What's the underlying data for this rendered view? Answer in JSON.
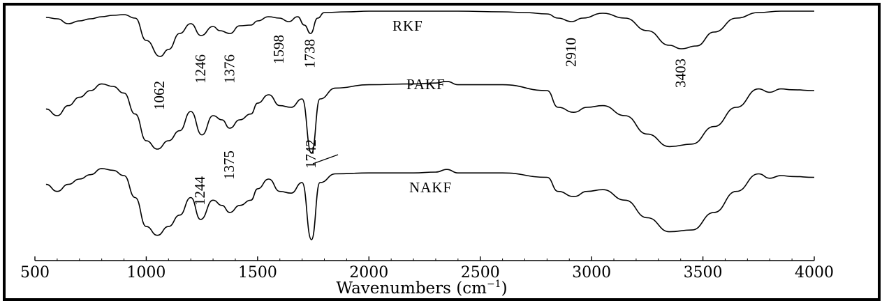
{
  "chart_data": {
    "type": "line",
    "xlabel": "Wavenumbers (cm",
    "xlabel_sup": "−1",
    "xlabel_close": ")",
    "xlim": [
      500,
      4000
    ],
    "xticks": [
      500,
      1000,
      1500,
      2000,
      2500,
      3000,
      3500,
      4000
    ],
    "grid": false,
    "series": [
      {
        "name": "RKF",
        "x": [
          550,
          600,
          650,
          700,
          750,
          800,
          850,
          900,
          950,
          1000,
          1062,
          1100,
          1150,
          1200,
          1246,
          1300,
          1330,
          1376,
          1420,
          1470,
          1500,
          1550,
          1598,
          1640,
          1680,
          1710,
          1738,
          1770,
          1800,
          1900,
          2000,
          2200,
          2400,
          2600,
          2700,
          2800,
          2850,
          2910,
          2960,
          3050,
          3150,
          3250,
          3350,
          3403,
          3470,
          3550,
          3650,
          3750,
          3850,
          4000
        ],
        "y": [
          0.91,
          0.89,
          0.82,
          0.86,
          0.89,
          0.92,
          0.94,
          0.95,
          0.9,
          0.58,
          0.35,
          0.45,
          0.68,
          0.82,
          0.65,
          0.78,
          0.72,
          0.68,
          0.79,
          0.8,
          0.86,
          0.92,
          0.9,
          0.85,
          0.92,
          0.8,
          0.68,
          0.9,
          0.98,
          0.99,
          1.0,
          1.0,
          1.0,
          0.99,
          0.98,
          0.96,
          0.9,
          0.85,
          0.9,
          0.97,
          0.9,
          0.72,
          0.51,
          0.46,
          0.5,
          0.7,
          0.9,
          0.98,
          1.0,
          1.0
        ]
      },
      {
        "name": "PAKF",
        "x": [
          550,
          600,
          650,
          700,
          750,
          800,
          850,
          900,
          950,
          1000,
          1050,
          1100,
          1150,
          1200,
          1250,
          1300,
          1340,
          1375,
          1420,
          1470,
          1500,
          1550,
          1600,
          1650,
          1700,
          1742,
          1780,
          1850,
          2000,
          2200,
          2300,
          2350,
          2400,
          2600,
          2800,
          2850,
          2920,
          2980,
          3050,
          3150,
          3250,
          3350,
          3450,
          3550,
          3650,
          3750,
          3800,
          3850,
          3900,
          4000
        ],
        "y": [
          0.68,
          0.6,
          0.72,
          0.82,
          0.9,
          0.98,
          0.95,
          0.87,
          0.62,
          0.3,
          0.2,
          0.3,
          0.42,
          0.65,
          0.37,
          0.6,
          0.55,
          0.45,
          0.55,
          0.62,
          0.75,
          0.85,
          0.72,
          0.7,
          0.8,
          0.15,
          0.8,
          0.93,
          0.97,
          0.98,
          0.99,
          1.01,
          0.97,
          0.97,
          0.9,
          0.7,
          0.64,
          0.7,
          0.72,
          0.6,
          0.38,
          0.23,
          0.26,
          0.47,
          0.7,
          0.92,
          0.88,
          0.92,
          0.91,
          0.9
        ]
      },
      {
        "name": "NAKF",
        "x": [
          550,
          600,
          650,
          700,
          750,
          800,
          850,
          900,
          950,
          1000,
          1050,
          1100,
          1150,
          1200,
          1244,
          1300,
          1340,
          1375,
          1420,
          1470,
          1500,
          1550,
          1600,
          1650,
          1700,
          1742,
          1780,
          1850,
          2000,
          2200,
          2300,
          2350,
          2400,
          2600,
          2800,
          2850,
          2920,
          2980,
          3050,
          3150,
          3250,
          3350,
          3450,
          3550,
          3650,
          3750,
          3800,
          3850,
          3900,
          4000
        ],
        "y": [
          0.9,
          0.82,
          0.9,
          0.96,
          1.01,
          1.08,
          1.06,
          1.0,
          0.75,
          0.42,
          0.32,
          0.42,
          0.55,
          0.75,
          0.5,
          0.72,
          0.66,
          0.58,
          0.66,
          0.72,
          0.85,
          0.96,
          0.82,
          0.8,
          0.92,
          0.27,
          0.92,
          1.02,
          1.03,
          1.03,
          1.04,
          1.07,
          1.03,
          1.03,
          0.98,
          0.82,
          0.76,
          0.82,
          0.84,
          0.72,
          0.52,
          0.36,
          0.38,
          0.58,
          0.82,
          1.02,
          0.97,
          1.0,
          0.99,
          0.98
        ]
      }
    ],
    "annotations": [
      "1062",
      "1246",
      "1376",
      "1598",
      "1738",
      "2910",
      "3403",
      "1742",
      "1244",
      "1375"
    ]
  }
}
